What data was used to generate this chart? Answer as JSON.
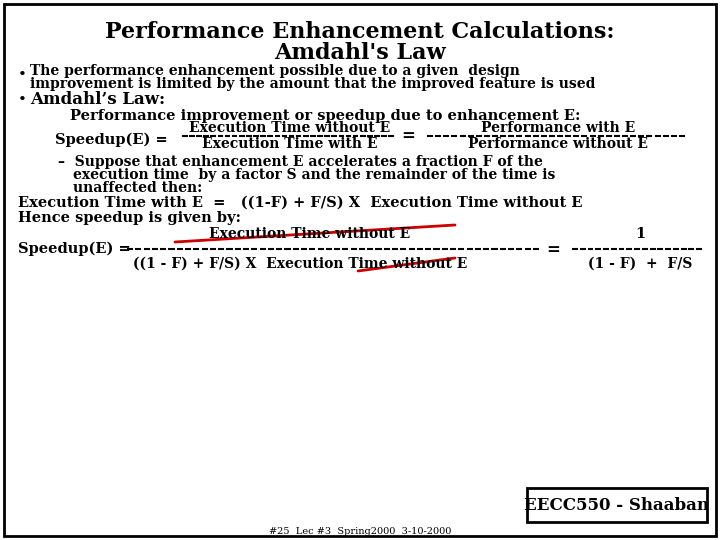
{
  "title_line1": "Performance Enhancement Calculations:",
  "title_line2": "Amdahl's Law",
  "bg_color": "#ffffff",
  "border_color": "#000000",
  "text_color": "#000000",
  "red_color": "#cc0000",
  "footer_box_text": "EECC550 - Shaaban",
  "footer_small": "#25  Lec #3  Spring2000  3-10-2000"
}
